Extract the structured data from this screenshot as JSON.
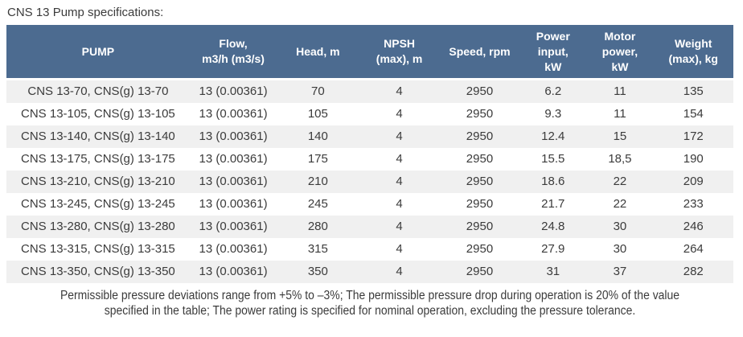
{
  "page": {
    "title": "CNS 13 Pump specifications:"
  },
  "table": {
    "columns": [
      {
        "id": "pump",
        "label": "PUMP"
      },
      {
        "id": "flow",
        "label": "Flow,\nm3/h (m3/s)"
      },
      {
        "id": "head",
        "label": "Head, m"
      },
      {
        "id": "npsh",
        "label": "NPSH\n(max), m"
      },
      {
        "id": "speed",
        "label": "Speed, rpm"
      },
      {
        "id": "power_input",
        "label": "Power\ninput,\nkW"
      },
      {
        "id": "motor_power",
        "label": "Motor\npower,\nkW"
      },
      {
        "id": "weight",
        "label": "Weight\n(max), kg"
      }
    ],
    "rows": [
      [
        "CNS 13-70, CNS(g) 13-70",
        "13 (0.00361)",
        "70",
        "4",
        "2950",
        "6.2",
        "11",
        "135"
      ],
      [
        "CNS 13-105, CNS(g) 13-105",
        "13 (0.00361)",
        "105",
        "4",
        "2950",
        "9.3",
        "11",
        "154"
      ],
      [
        "CNS 13-140, CNS(g) 13-140",
        "13 (0.00361)",
        "140",
        "4",
        "2950",
        "12.4",
        "15",
        "172"
      ],
      [
        "CNS 13-175, CNS(g) 13-175",
        "13 (0.00361)",
        "175",
        "4",
        "2950",
        "15.5",
        "18,5",
        "190"
      ],
      [
        "CNS 13-210, CNS(g) 13-210",
        "13 (0.00361)",
        "210",
        "4",
        "2950",
        "18.6",
        "22",
        "209"
      ],
      [
        "CNS 13-245, CNS(g) 13-245",
        "13 (0.00361)",
        "245",
        "4",
        "2950",
        "21.7",
        "22",
        "233"
      ],
      [
        "CNS 13-280, CNS(g) 13-280",
        "13 (0.00361)",
        "280",
        "4",
        "2950",
        "24.8",
        "30",
        "246"
      ],
      [
        "CNS 13-315, CNS(g) 13-315",
        "13 (0.00361)",
        "315",
        "4",
        "2950",
        "27.9",
        "30",
        "264"
      ],
      [
        "CNS 13-350, CNS(g) 13-350",
        "13 (0.00361)",
        "350",
        "4",
        "2950",
        "31",
        "37",
        "282"
      ]
    ]
  },
  "footnote": {
    "lines": [
      "Permissible pressure deviations range from +5% to –3%; The permissible pressure drop during operation is 20% of the value",
      "specified in the table; The power rating is specified for nominal operation, excluding the pressure tolerance."
    ],
    "full_text": "Permissible pressure deviations range from +5% to –3%; The permissible pressure drop during operation is 20% of the value specified in the table; The power rating is specified for nominal operation, excluding the pressure tolerance."
  },
  "colors": {
    "header_bg": "#4c6b90",
    "header_text": "#ffffff",
    "row_stripe": "#f0f0f0",
    "row_plain": "#ffffff",
    "body_text": "#3b3b3b"
  }
}
